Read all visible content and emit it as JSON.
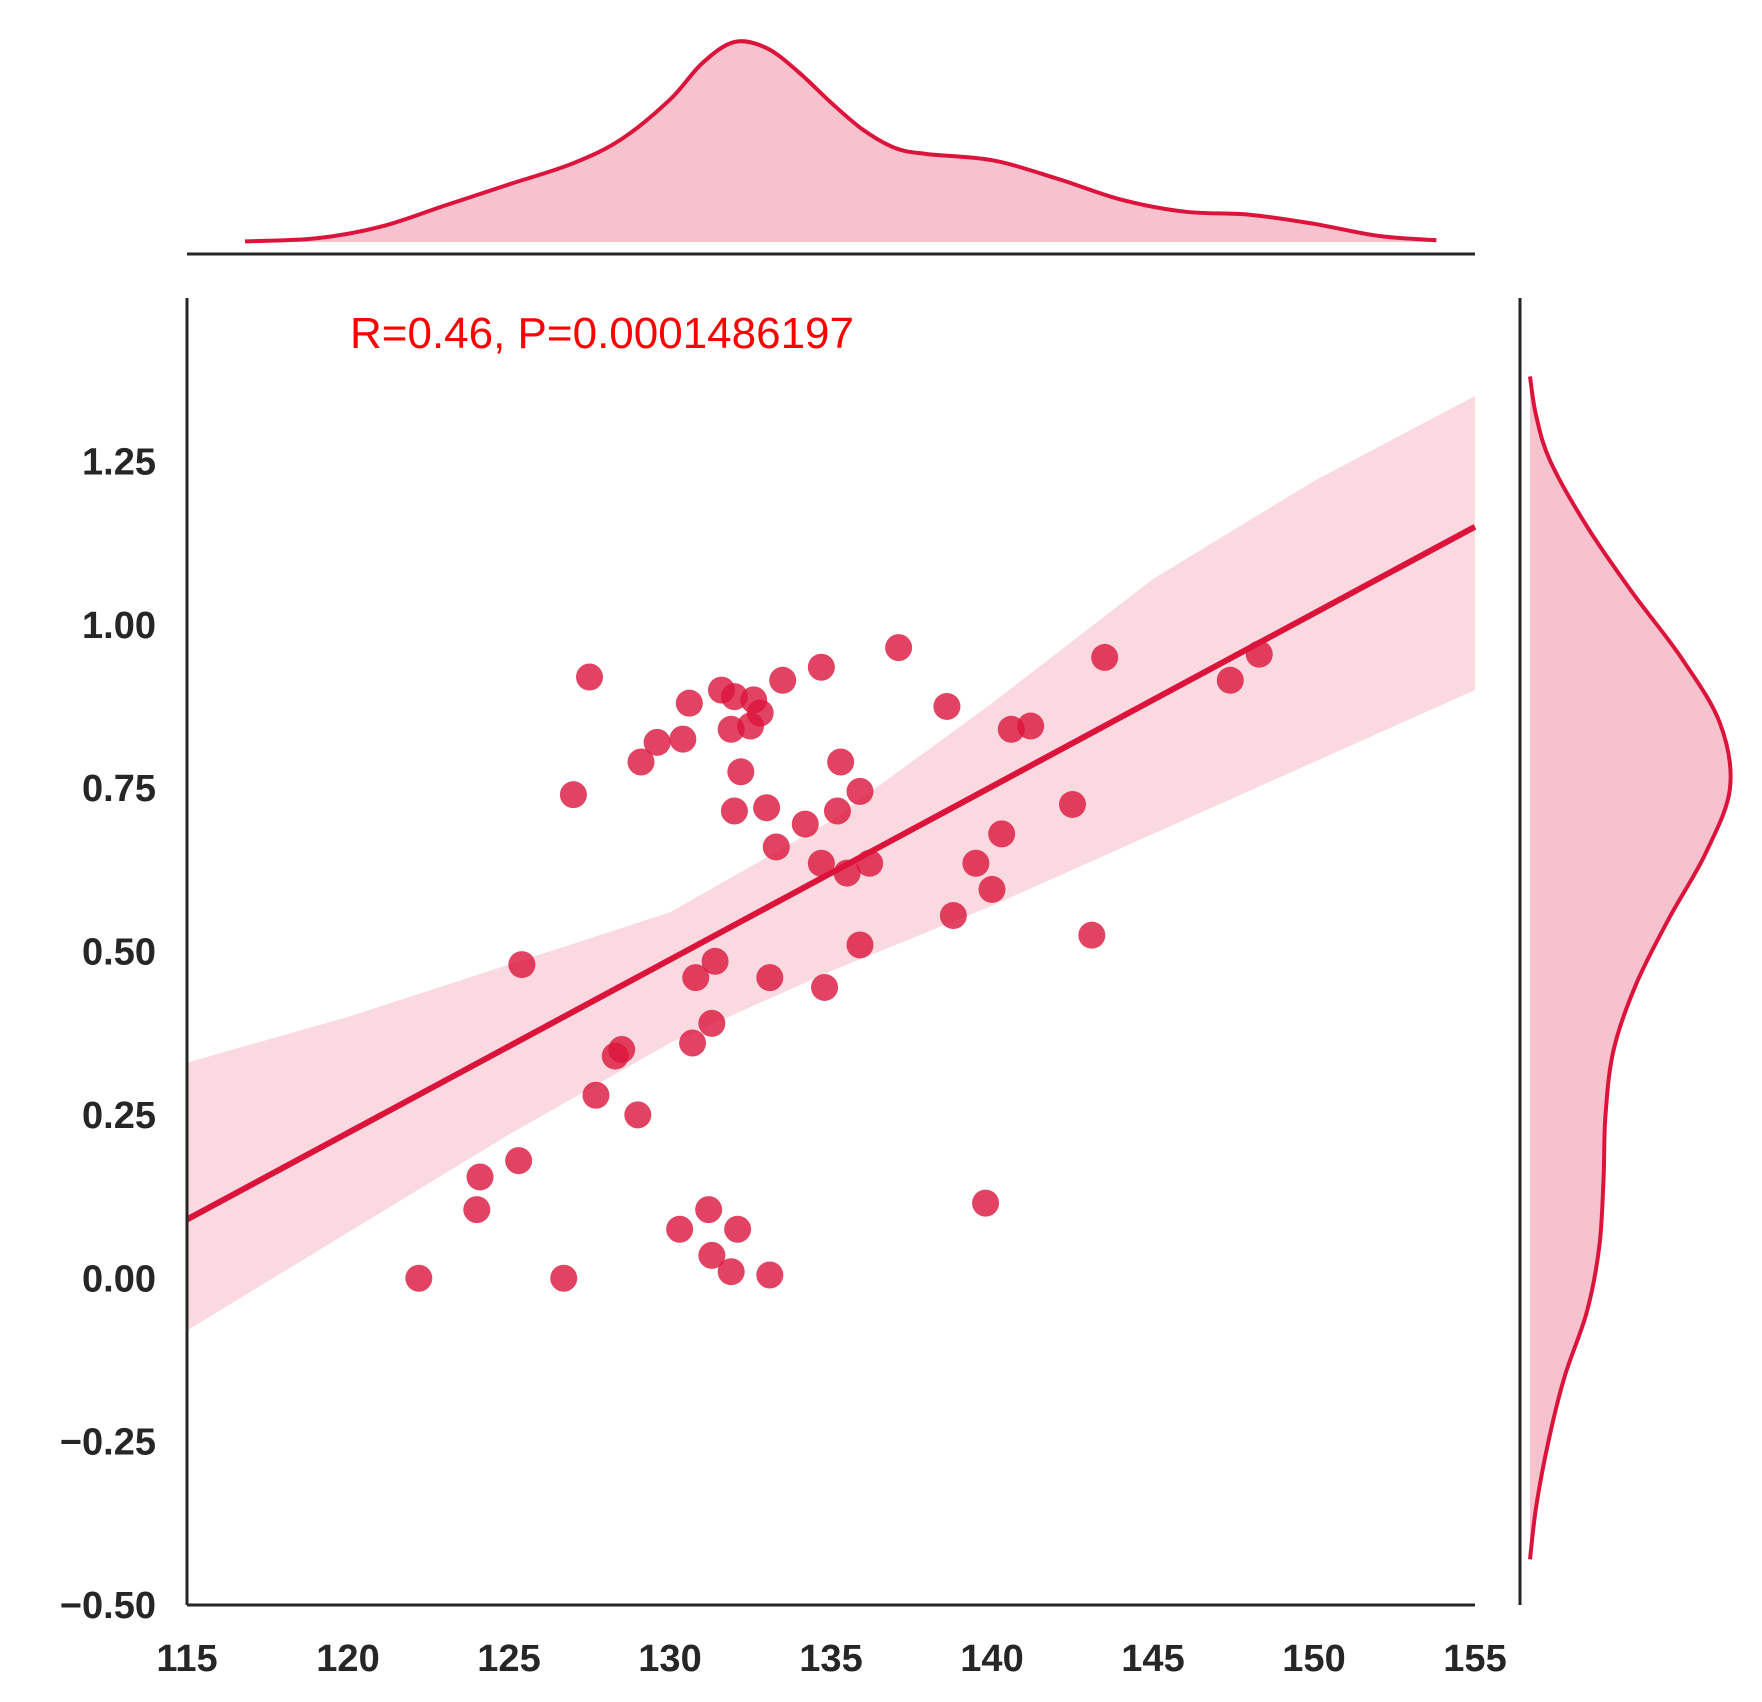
{
  "chart_data": {
    "type": "scatter",
    "annotation": "R=0.46, P=0.0001486197",
    "xlim": [
      115,
      155
    ],
    "ylim": [
      -0.5,
      1.5
    ],
    "x_ticks": [
      "115",
      "120",
      "125",
      "130",
      "135",
      "140",
      "145",
      "150",
      "155"
    ],
    "y_ticks": [
      "−0.50",
      "−0.25",
      "0.00",
      "0.25",
      "0.50",
      "0.75",
      "1.00",
      "1.25"
    ],
    "x_tick_values": [
      115,
      120,
      125,
      130,
      135,
      140,
      145,
      150,
      155
    ],
    "y_tick_values": [
      -0.5,
      -0.25,
      0,
      0.25,
      0.5,
      0.75,
      1.0,
      1.25
    ],
    "grid": false,
    "colors": {
      "points": "#dc143c",
      "line": "#dc143c",
      "band": "#f8c6d0",
      "kde_fill": "#f4b3c2",
      "annotation": "#ff0000",
      "axis": "#262626"
    },
    "points": [
      [
        122.2,
        0.0
      ],
      [
        124.0,
        0.105
      ],
      [
        124.1,
        0.155
      ],
      [
        125.3,
        0.18
      ],
      [
        125.4,
        0.48
      ],
      [
        126.7,
        0.0
      ],
      [
        127.0,
        0.74
      ],
      [
        127.5,
        0.92
      ],
      [
        127.7,
        0.28
      ],
      [
        128.3,
        0.34
      ],
      [
        128.5,
        0.35
      ],
      [
        129.0,
        0.25
      ],
      [
        129.1,
        0.79
      ],
      [
        129.6,
        0.82
      ],
      [
        130.3,
        0.075
      ],
      [
        130.4,
        0.825
      ],
      [
        130.6,
        0.88
      ],
      [
        130.7,
        0.36
      ],
      [
        130.8,
        0.46
      ],
      [
        131.2,
        0.105
      ],
      [
        131.3,
        0.39
      ],
      [
        131.3,
        0.035
      ],
      [
        131.4,
        0.485
      ],
      [
        131.6,
        0.9
      ],
      [
        131.9,
        0.84
      ],
      [
        131.9,
        0.01
      ],
      [
        132.0,
        0.715
      ],
      [
        132.0,
        0.89
      ],
      [
        132.1,
        0.075
      ],
      [
        132.2,
        0.775
      ],
      [
        132.5,
        0.845
      ],
      [
        132.6,
        0.885
      ],
      [
        132.8,
        0.865
      ],
      [
        133.0,
        0.72
      ],
      [
        133.1,
        0.46
      ],
      [
        133.1,
        0.005
      ],
      [
        133.3,
        0.66
      ],
      [
        133.5,
        0.915
      ],
      [
        134.2,
        0.695
      ],
      [
        134.7,
        0.635
      ],
      [
        134.7,
        0.935
      ],
      [
        134.8,
        0.445
      ],
      [
        135.2,
        0.715
      ],
      [
        135.3,
        0.79
      ],
      [
        135.5,
        0.62
      ],
      [
        135.9,
        0.51
      ],
      [
        135.9,
        0.745
      ],
      [
        136.2,
        0.635
      ],
      [
        137.1,
        0.965
      ],
      [
        138.6,
        0.875
      ],
      [
        138.8,
        0.555
      ],
      [
        139.5,
        0.635
      ],
      [
        139.8,
        0.115
      ],
      [
        140.0,
        0.595
      ],
      [
        140.3,
        0.68
      ],
      [
        140.6,
        0.84
      ],
      [
        141.2,
        0.845
      ],
      [
        142.5,
        0.725
      ],
      [
        143.1,
        0.525
      ],
      [
        143.5,
        0.95
      ],
      [
        147.4,
        0.915
      ],
      [
        148.3,
        0.955
      ]
    ],
    "regression": {
      "x": [
        115,
        155
      ],
      "y": [
        0.09,
        1.15
      ]
    },
    "ci_band": {
      "x": [
        115,
        120,
        125,
        130,
        135,
        140,
        145,
        150,
        155
      ],
      "lower": [
        -0.08,
        0.07,
        0.22,
        0.36,
        0.47,
        0.57,
        0.68,
        0.79,
        0.9
      ],
      "upper": [
        0.33,
        0.4,
        0.48,
        0.56,
        0.7,
        0.88,
        1.07,
        1.22,
        1.35
      ]
    },
    "kde_x": {
      "x": [
        116.8,
        119,
        121,
        123,
        125,
        127,
        128.5,
        130,
        131,
        132,
        133,
        134,
        135,
        136,
        137,
        138,
        140,
        142,
        144,
        146,
        148,
        150,
        152,
        153.8
      ],
      "density": [
        0.002,
        0.012,
        0.05,
        0.12,
        0.19,
        0.26,
        0.34,
        0.47,
        0.59,
        0.66,
        0.64,
        0.56,
        0.46,
        0.37,
        0.31,
        0.29,
        0.27,
        0.21,
        0.14,
        0.1,
        0.09,
        0.06,
        0.02,
        0.006
      ]
    },
    "kde_y": {
      "y": [
        -0.43,
        -0.35,
        -0.25,
        -0.15,
        -0.05,
        0.05,
        0.15,
        0.25,
        0.35,
        0.45,
        0.55,
        0.65,
        0.75,
        0.85,
        0.95,
        1.05,
        1.15,
        1.25,
        1.32,
        1.38
      ],
      "density": [
        0.0,
        0.03,
        0.09,
        0.17,
        0.28,
        0.34,
        0.36,
        0.37,
        0.41,
        0.52,
        0.68,
        0.86,
        0.98,
        0.93,
        0.74,
        0.5,
        0.28,
        0.1,
        0.03,
        0.0
      ]
    }
  }
}
